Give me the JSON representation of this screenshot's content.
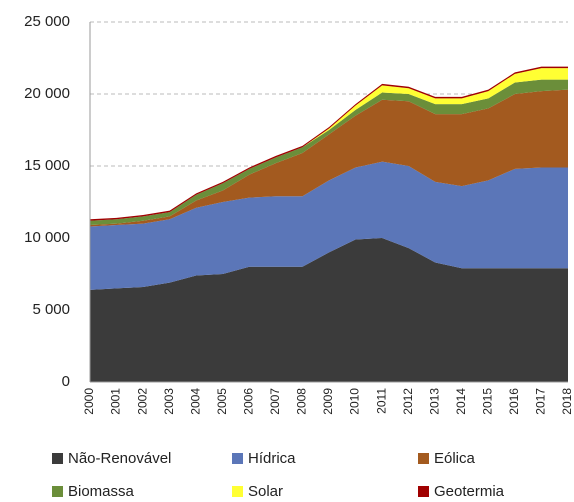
{
  "chart_data": {
    "type": "stacked_area",
    "categories": [
      "2000",
      "2001",
      "2002",
      "2003",
      "2004",
      "2005",
      "2006",
      "2007",
      "2008",
      "2009",
      "2010",
      "2011",
      "2012",
      "2013",
      "2014",
      "2015",
      "2016",
      "2017",
      "2018"
    ],
    "series": [
      {
        "name": "Não-Renovável",
        "color": "#3b3b3b",
        "values": [
          6400,
          6500,
          6600,
          6900,
          7400,
          7500,
          8000,
          8000,
          8000,
          9000,
          9900,
          10000,
          9300,
          8300,
          7900,
          7900,
          7900,
          7900,
          7900
        ]
      },
      {
        "name": "Hídrica",
        "color": "#5b76b8",
        "values": [
          4400,
          4400,
          4400,
          4400,
          4700,
          5000,
          4800,
          4900,
          4900,
          5000,
          5000,
          5300,
          5700,
          5600,
          5700,
          6100,
          6900,
          7000,
          7000
        ]
      },
      {
        "name": "Eólica",
        "color": "#a35a1f",
        "values": [
          100,
          100,
          200,
          200,
          500,
          800,
          1600,
          2300,
          3000,
          3200,
          3600,
          4300,
          4500,
          4700,
          5000,
          5000,
          5200,
          5300,
          5400
        ]
      },
      {
        "name": "Biomassa",
        "color": "#6b8e3a",
        "values": [
          300,
          300,
          300,
          300,
          400,
          500,
          400,
          400,
          400,
          300,
          400,
          500,
          500,
          700,
          700,
          700,
          800,
          800,
          700
        ]
      },
      {
        "name": "Solar",
        "color": "#ffff33",
        "values": [
          0,
          0,
          0,
          0,
          0,
          0,
          0,
          0,
          0,
          100,
          300,
          500,
          400,
          400,
          400,
          500,
          600,
          800,
          800
        ]
      },
      {
        "name": "Geotermia",
        "color": "#a00000",
        "values": [
          100,
          100,
          100,
          100,
          100,
          100,
          100,
          100,
          100,
          100,
          100,
          100,
          100,
          100,
          100,
          100,
          100,
          100,
          100
        ]
      }
    ],
    "ylim": [
      0,
      25000
    ],
    "yticks": [
      0,
      {
        "value": 5000,
        "label": "5 000"
      },
      {
        "value": 10000,
        "label": "10 000"
      },
      {
        "value": 15000,
        "label": "15 000"
      },
      {
        "value": 20000,
        "label": "20 000"
      },
      {
        "value": 25000,
        "label": "25 000"
      }
    ],
    "grid": true
  }
}
